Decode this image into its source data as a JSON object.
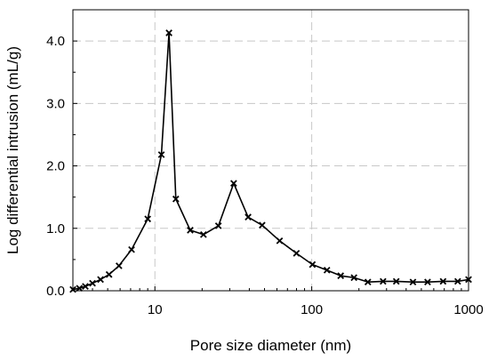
{
  "chart_data": {
    "type": "line",
    "title": "",
    "xlabel": "Pore size diameter (nm)",
    "ylabel": "Log differential intrusion (mL/g)",
    "xscale": "log",
    "xlim": [
      3,
      1000
    ],
    "ylim": [
      0,
      4.5
    ],
    "xticks": [
      10,
      100,
      1000
    ],
    "xtick_labels": [
      "10",
      "100",
      "1000"
    ],
    "yticks": [
      0,
      1,
      2,
      3,
      4
    ],
    "ytick_labels": [
      "0.0",
      "1.0",
      "2.0",
      "3.0",
      "4.0"
    ],
    "grid": true,
    "legend": "none",
    "marker": "x",
    "line_color": "#000000",
    "grid_color": "#c8c8c8",
    "series": [
      {
        "x": [
          3.0,
          3.3,
          3.6,
          4.0,
          4.5,
          5.1,
          5.9,
          7.1,
          9.0,
          11.0,
          12.3,
          13.6,
          16.8,
          20.4,
          25.4,
          31.8,
          39.3,
          48.3,
          62.4,
          79.9,
          101,
          125,
          153,
          186,
          228,
          285,
          346,
          442,
          548,
          688,
          853,
          1000
        ],
        "y": [
          0.02,
          0.04,
          0.07,
          0.12,
          0.18,
          0.26,
          0.4,
          0.66,
          1.15,
          2.18,
          4.13,
          1.47,
          0.97,
          0.9,
          1.04,
          1.72,
          1.18,
          1.05,
          0.8,
          0.6,
          0.42,
          0.33,
          0.24,
          0.21,
          0.14,
          0.15,
          0.15,
          0.14,
          0.14,
          0.15,
          0.15,
          0.18
        ]
      }
    ]
  }
}
